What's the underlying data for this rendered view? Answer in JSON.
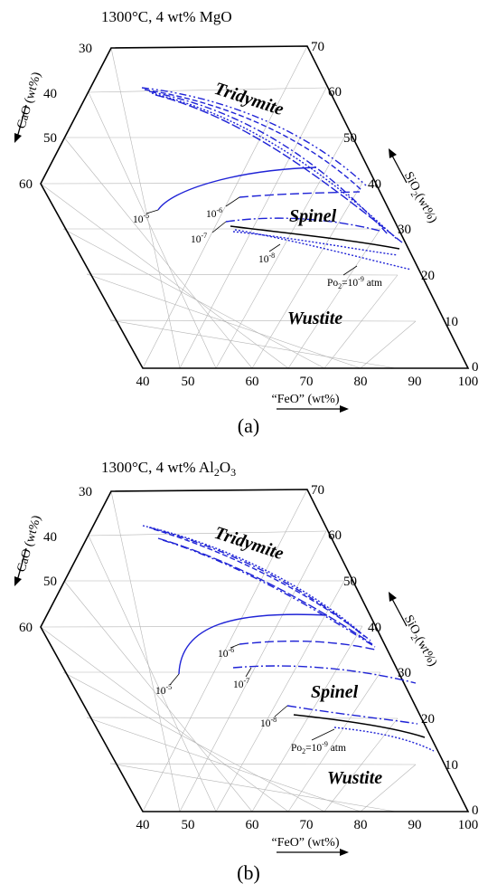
{
  "colors": {
    "curve": "#1f23d6",
    "boundary": "#000000",
    "grid": "#b5b5b5"
  },
  "panels": [
    {
      "id": "a",
      "title": "1300°C,   4 wt%  MgO",
      "panel_label": "(a)",
      "axes": {
        "cao": {
          "label": "CaO (wt%)",
          "ticks": [
            "30",
            "40",
            "50",
            "60"
          ]
        },
        "sio2": {
          "label": "SiO2 (wt%)",
          "ticks": [
            "70",
            "60",
            "50",
            "40",
            "30",
            "20",
            "10",
            "0"
          ]
        },
        "feo": {
          "label": "“FeO” (wt%)",
          "ticks": [
            "40",
            "50",
            "60",
            "70",
            "80",
            "90",
            "100"
          ]
        }
      },
      "phases": [
        "Tridymite",
        "Spinel",
        "Wustite"
      ],
      "po2_labels": [
        "10-5",
        "10-6",
        "10-7",
        "10-8",
        "Po2=10-9 atm"
      ]
    },
    {
      "id": "b",
      "title": "1300°C,   4 wt%  Al2O3",
      "panel_label": "(b)",
      "axes": {
        "cao": {
          "label": "CaO (wt%)",
          "ticks": [
            "30",
            "40",
            "50",
            "60"
          ]
        },
        "sio2": {
          "label": "SiO2 (wt%)",
          "ticks": [
            "70",
            "60",
            "50",
            "40",
            "30",
            "20",
            "10",
            "0"
          ]
        },
        "feo": {
          "label": "“FeO” (wt%)",
          "ticks": [
            "40",
            "50",
            "60",
            "70",
            "80",
            "90",
            "100"
          ]
        }
      },
      "phases": [
        "Tridymite",
        "Spinel",
        "Wustite"
      ],
      "po2_labels": [
        "10-5",
        "10-6",
        "10-7",
        "10-8",
        "Po2=10-9 atm"
      ]
    }
  ]
}
